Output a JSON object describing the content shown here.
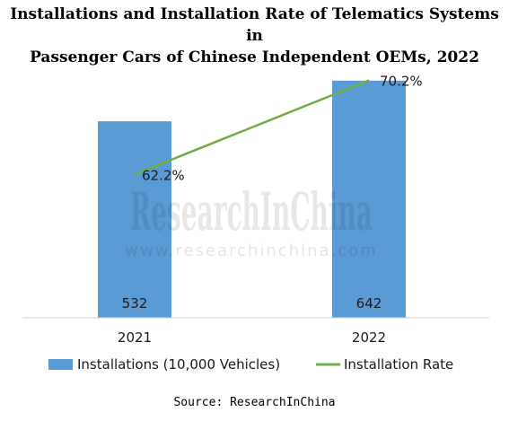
{
  "chart_data": {
    "type": "bar",
    "title_lines": [
      "Installations and Installation Rate of Telematics Systems in",
      "Passenger Cars of Chinese Independent OEMs, 2022"
    ],
    "categories": [
      "2021",
      "2022"
    ],
    "series": [
      {
        "name": "Installations (10,000 Vehicles)",
        "type": "bar",
        "values": [
          532,
          642
        ],
        "labels": [
          "532",
          "642"
        ],
        "color": "#5b9bd5"
      },
      {
        "name": "Installation Rate",
        "type": "line",
        "values": [
          62.2,
          70.2
        ],
        "labels": [
          "62.2%",
          "70.2%"
        ],
        "color": "#70ad47"
      }
    ],
    "ylim": [
      0,
      700
    ],
    "y2lim": [
      50,
      72
    ],
    "grid": false,
    "legend": "bottom",
    "watermark": "ResearchInChina",
    "watermark_url": "www.researchinchina.com",
    "source": "Source:  ResearchInChina"
  }
}
